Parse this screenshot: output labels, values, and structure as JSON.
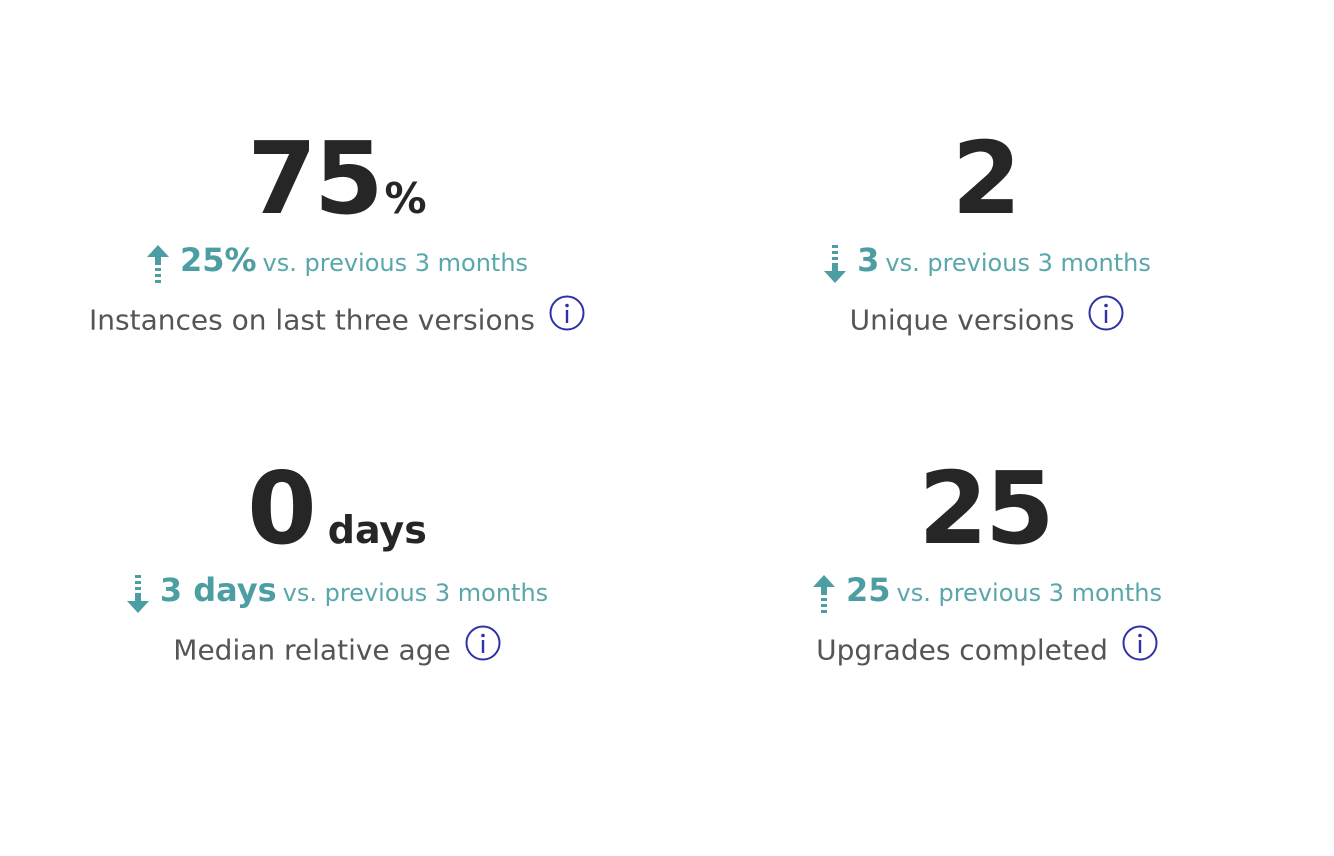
{
  "colors": {
    "trend": "#4d9ea3",
    "info": "#2e32a6",
    "value": "#262626",
    "label": "#555555"
  },
  "metrics": [
    {
      "value": "75",
      "unit": "%",
      "trend_icon": "arrow-up-icon",
      "delta": "25%",
      "comparison": "vs. previous 3 months",
      "label": "Instances on last three versions"
    },
    {
      "value": "2",
      "unit": "",
      "trend_icon": "arrow-down-icon",
      "delta": "3",
      "comparison": "vs. previous 3 months",
      "label": "Unique versions"
    },
    {
      "value": "0",
      "unit": "days",
      "trend_icon": "arrow-down-icon",
      "delta": "3 days",
      "comparison": "vs. previous 3 months",
      "label": "Median relative age"
    },
    {
      "value": "25",
      "unit": "",
      "trend_icon": "arrow-up-icon",
      "delta": "25",
      "comparison": "vs. previous 3 months",
      "label": "Upgrades completed"
    }
  ]
}
